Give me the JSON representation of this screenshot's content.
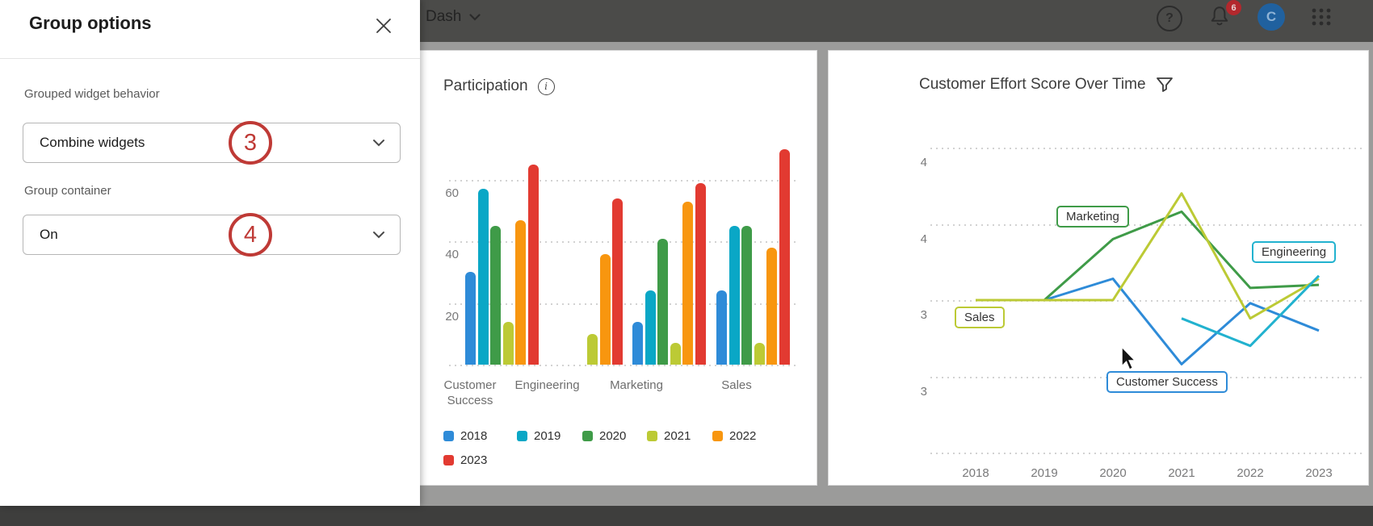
{
  "topbar": {
    "dashboard_label": "Dash",
    "help_glyph": "?",
    "notification_count": "6",
    "avatar_initial": "C"
  },
  "drawer": {
    "title": "Group options",
    "fields": [
      {
        "label": "Grouped widget behavior",
        "value": "Combine widgets",
        "annotation": "3"
      },
      {
        "label": "Group container",
        "value": "On",
        "annotation": "4"
      }
    ]
  },
  "participation": {
    "title": "Participation"
  },
  "ces": {
    "title": "Customer Effort Score Over Time"
  },
  "chart_data": [
    {
      "type": "bar",
      "title": "Participation",
      "categories": [
        "Customer Success",
        "Engineering",
        "Marketing",
        "Sales"
      ],
      "series": [
        {
          "name": "2018",
          "color": "#2e8bd8",
          "values": [
            30,
            null,
            14,
            24
          ]
        },
        {
          "name": "2019",
          "color": "#0aa7c6",
          "values": [
            57,
            null,
            24,
            45
          ]
        },
        {
          "name": "2020",
          "color": "#3f9b48",
          "values": [
            45,
            null,
            41,
            45
          ]
        },
        {
          "name": "2021",
          "color": "#bcca35",
          "values": [
            14,
            10,
            7,
            7
          ]
        },
        {
          "name": "2022",
          "color": "#f8960f",
          "values": [
            47,
            36,
            53,
            38
          ]
        },
        {
          "name": "2023",
          "color": "#e23a31",
          "values": [
            65,
            54,
            59,
            70
          ]
        }
      ],
      "ylim": [
        0,
        75
      ],
      "y_ticks": [
        60,
        40,
        20
      ],
      "grid": "dotted-horizontal",
      "legend_position": "bottom"
    },
    {
      "type": "line",
      "title": "Customer Effort Score Over Time",
      "x": [
        2018,
        2019,
        2020,
        2021,
        2022,
        2023
      ],
      "ylim": [
        3.0,
        4.0
      ],
      "ytick_values": [
        4.0,
        3.75,
        3.5,
        3.25,
        3.0
      ],
      "ytick_display": [
        "4",
        "4",
        "3",
        "3",
        ""
      ],
      "grid": "dotted-horizontal",
      "series": [
        {
          "name": "Customer Success",
          "color": "#2e8bd8",
          "points": [
            [
              2019,
              3.5
            ],
            [
              2020,
              3.57
            ],
            [
              2021,
              3.29
            ],
            [
              2022,
              3.49
            ],
            [
              2023,
              3.4
            ]
          ]
        },
        {
          "name": "Marketing",
          "color": "#3f9b48",
          "points": [
            [
              2019,
              3.5
            ],
            [
              2020,
              3.7
            ],
            [
              2021,
              3.79
            ],
            [
              2022,
              3.54
            ],
            [
              2023,
              3.55
            ]
          ]
        },
        {
          "name": "Sales",
          "color": "#bcca35",
          "points": [
            [
              2018,
              3.5
            ],
            [
              2019,
              3.5
            ],
            [
              2020,
              3.5
            ],
            [
              2021,
              3.85
            ],
            [
              2022,
              3.44
            ],
            [
              2023,
              3.57
            ]
          ]
        },
        {
          "name": "Engineering",
          "color": "#22b2cf",
          "points": [
            [
              2021,
              3.44
            ],
            [
              2022,
              3.35
            ],
            [
              2023,
              3.58
            ]
          ]
        }
      ]
    }
  ]
}
